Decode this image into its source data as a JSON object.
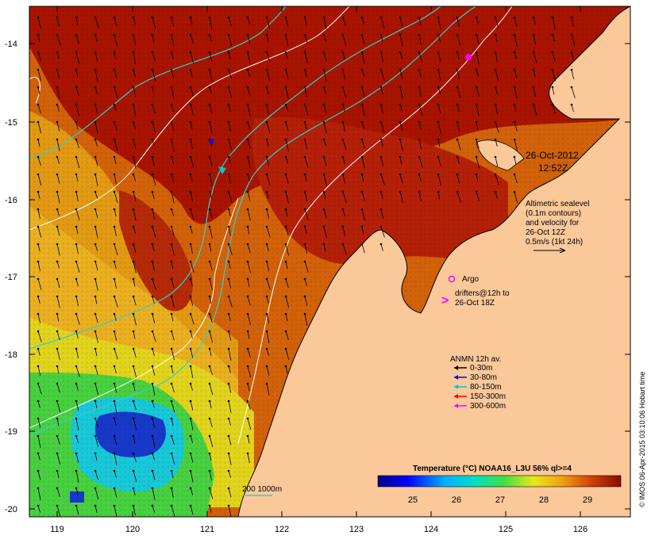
{
  "map": {
    "datetime_line1": "26-Oct-2012",
    "datetime_line2": "12:52Z",
    "altimetry_note": [
      "Altimetric sealevel",
      "(0.1m contours)",
      "and velocity for",
      "26-Oct 12Z",
      "0.5m/s (1kt 24h)"
    ],
    "argo_label": "Argo",
    "drifter_label_line1": "drifters@12h to",
    "drifter_label_line2": "26-Oct 18Z",
    "anmn_title": "ANMN 12h av.",
    "anmn_items": [
      {
        "label": "0-30m",
        "color": "#000000"
      },
      {
        "label": "30-80m",
        "color": "#0000ff"
      },
      {
        "label": "80-150m",
        "color": "#00c8c8"
      },
      {
        "label": "150-300m",
        "color": "#ff0000"
      },
      {
        "label": "300-600m",
        "color": "#ff00ff"
      }
    ],
    "bathy_label": "200  1000m",
    "colorbar_title": "Temperature (°C) NOAA16_L3U 56% ql>=4",
    "colorbar_ticks": [
      "25",
      "26",
      "27",
      "28",
      "29"
    ],
    "credit": "© IMOS 06-Apr-2015 03:10:06 Hobart time",
    "lon_ticks": [
      "119",
      "120",
      "121",
      "122",
      "123",
      "124",
      "125",
      "126"
    ],
    "lat_ticks": [
      "-14",
      "-15",
      "-16",
      "-17",
      "-18",
      "-19",
      "-20"
    ],
    "colors": {
      "land": "#fbc89a",
      "sst_hot": "#a81400",
      "sst_warm": "#d2620a",
      "sst_mid": "#e8a012",
      "sst_yellow": "#e8e018",
      "sst_green": "#40d040",
      "sst_cyan": "#10c8e0",
      "sst_blue": "#1030c8",
      "isobath_1000": "#30d0d0",
      "sealevel_contour": "#ffffff",
      "argo": "#ff00ff"
    }
  }
}
